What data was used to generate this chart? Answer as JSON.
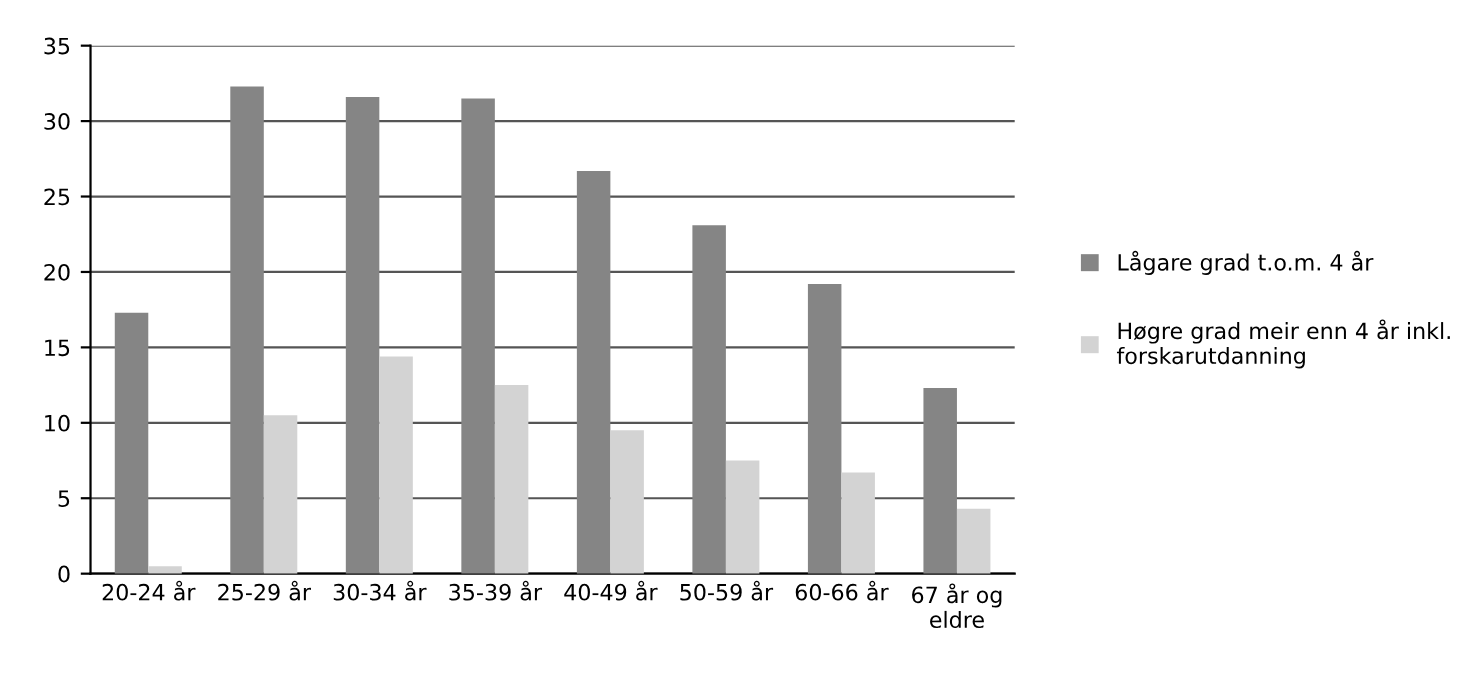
{
  "chart_data": {
    "type": "bar",
    "categories": [
      "20-24 år",
      "25-29 år",
      "30-34 år",
      "35-39 år",
      "40-49 år",
      "50-59 år",
      "60-66 år",
      "67 år og\neldre"
    ],
    "series": [
      {
        "name": "Lågare grad t.o.m. 4 år",
        "color": "#858585",
        "values": [
          17.3,
          32.3,
          31.6,
          31.5,
          26.7,
          23.1,
          19.2,
          12.3
        ]
      },
      {
        "name": "Høgre grad meir enn 4 år inkl.\nforskarutdanning",
        "color": "#d3d3d3",
        "values": [
          0.5,
          10.5,
          14.4,
          12.5,
          9.5,
          7.5,
          6.7,
          4.3
        ]
      }
    ],
    "ylim": [
      0,
      35
    ],
    "yticks": [
      0,
      5,
      10,
      15,
      20,
      25,
      30,
      35
    ],
    "grid": "y",
    "legend": "right"
  }
}
